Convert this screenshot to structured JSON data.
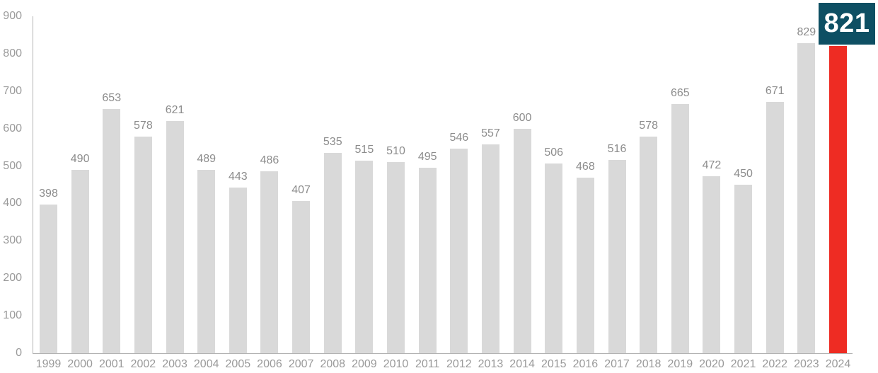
{
  "chart_data": {
    "type": "bar",
    "title": "",
    "xlabel": "",
    "ylabel": "",
    "categories": [
      "1999",
      "2000",
      "2001",
      "2002",
      "2003",
      "2004",
      "2005",
      "2006",
      "2007",
      "2008",
      "2009",
      "2010",
      "2011",
      "2012",
      "2013",
      "2014",
      "2015",
      "2016",
      "2017",
      "2018",
      "2019",
      "2020",
      "2021",
      "2022",
      "2023",
      "2024"
    ],
    "values": [
      398,
      490,
      653,
      578,
      621,
      489,
      443,
      486,
      407,
      535,
      515,
      510,
      495,
      546,
      557,
      600,
      506,
      468,
      516,
      578,
      665,
      472,
      450,
      671,
      829,
      821
    ],
    "ylim": [
      0,
      900
    ],
    "ytick_step": 100,
    "yticks": [
      "0",
      "100",
      "200",
      "300",
      "400",
      "500",
      "600",
      "700",
      "800",
      "900"
    ],
    "grid": false,
    "legend_position": "none",
    "value_labels_shown": true,
    "highlight": {
      "category": "2024",
      "value": 821,
      "badge_label": "821"
    },
    "colors": {
      "bar": "#d9d9d9",
      "highlight_bar": "#ee2c23",
      "badge_bg": "#0e4f63",
      "badge_text": "#ffffff",
      "value_label": "#8c8c8c",
      "axis_label": "#9a9a9a",
      "axis_line": "#b3b3b3"
    }
  }
}
